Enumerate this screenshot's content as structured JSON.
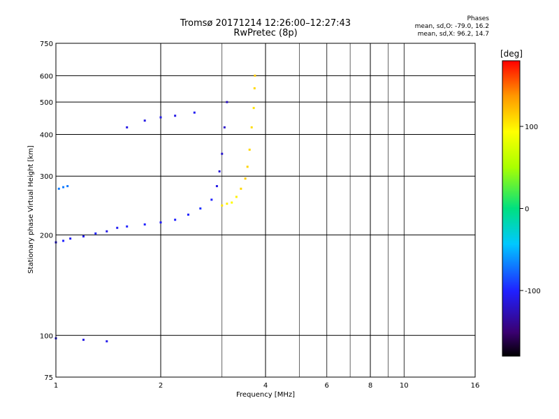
{
  "header": {
    "title_line1": "Tromsø 20171214 12:26:00–12:27:43",
    "title_line2": "RwPretec (8p)",
    "phases_heading": "Phases",
    "phases_o": "mean, sd,O: -79.0, 16.2",
    "phases_x": "mean, sd,X: 96.2, 14.7"
  },
  "colorbar": {
    "unit": "[deg]",
    "ticks": [
      {
        "v": 100,
        "label": "100"
      },
      {
        "v": 0,
        "label": "0"
      },
      {
        "v": -100,
        "label": "-100"
      }
    ],
    "range": [
      -180,
      180
    ]
  },
  "chart_data": {
    "type": "scatter",
    "title": "Tromsø 20171214 12:26:00–12:27:43",
    "subtitle": "RwPretec (8p)",
    "xlabel": "Frequency [MHz]",
    "ylabel": "Stationary phase Virtual Height [km]",
    "x_scale": "log",
    "y_scale": "log",
    "xlim": [
      1,
      16
    ],
    "ylim": [
      75,
      750
    ],
    "x_ticks": [
      {
        "v": 1,
        "label": "1",
        "major": true
      },
      {
        "v": 2,
        "label": "2",
        "major": true
      },
      {
        "v": 4,
        "label": "4",
        "major": true
      },
      {
        "v": 6,
        "label": "6",
        "major": false
      },
      {
        "v": 8,
        "label": "8",
        "major": true
      },
      {
        "v": 10,
        "label": "10",
        "major": false
      },
      {
        "v": 16,
        "label": "16",
        "major": true
      }
    ],
    "y_ticks": [
      {
        "v": 75,
        "label": "75"
      },
      {
        "v": 100,
        "label": "100"
      },
      {
        "v": 200,
        "label": "200"
      },
      {
        "v": 300,
        "label": "300"
      },
      {
        "v": 400,
        "label": "400"
      },
      {
        "v": 500,
        "label": "500"
      },
      {
        "v": 600,
        "label": "600"
      },
      {
        "v": 750,
        "label": "750"
      }
    ],
    "x_minor_grid": [
      3,
      5,
      7,
      9
    ],
    "grid": true,
    "color_scale": {
      "label": "[deg]",
      "range": [
        -180,
        180
      ]
    },
    "series": [
      {
        "name": "O",
        "points": [
          [
            1.0,
            190,
            -110
          ],
          [
            1.05,
            192,
            -100
          ],
          [
            1.1,
            195,
            -105
          ],
          [
            1.2,
            198,
            -108
          ],
          [
            1.3,
            202,
            -100
          ],
          [
            1.4,
            205,
            -110
          ],
          [
            1.5,
            210,
            -105
          ],
          [
            1.6,
            212,
            -100
          ],
          [
            1.8,
            215,
            -100
          ],
          [
            2.0,
            218,
            -105
          ],
          [
            2.2,
            222,
            -100
          ],
          [
            2.4,
            230,
            -100
          ],
          [
            2.6,
            240,
            -95
          ],
          [
            2.8,
            255,
            -100
          ],
          [
            2.9,
            280,
            -110
          ],
          [
            2.95,
            310,
            -115
          ],
          [
            3.0,
            350,
            -118
          ],
          [
            3.05,
            420,
            -120
          ],
          [
            3.1,
            500,
            -122
          ],
          [
            1.02,
            275,
            -70
          ],
          [
            1.05,
            278,
            -70
          ],
          [
            1.08,
            280,
            -70
          ],
          [
            1.6,
            420,
            -110
          ],
          [
            1.8,
            440,
            -110
          ],
          [
            2.0,
            450,
            -108
          ],
          [
            2.2,
            455,
            -110
          ],
          [
            2.5,
            465,
            -105
          ],
          [
            1.0,
            98,
            -110
          ],
          [
            1.2,
            97,
            -110
          ],
          [
            1.4,
            96,
            -108
          ]
        ]
      },
      {
        "name": "X",
        "points": [
          [
            3.0,
            245,
            105
          ],
          [
            3.1,
            248,
            100
          ],
          [
            3.2,
            250,
            95
          ],
          [
            3.3,
            260,
            100
          ],
          [
            3.4,
            275,
            110
          ],
          [
            3.5,
            295,
            115
          ],
          [
            3.55,
            320,
            112
          ],
          [
            3.6,
            360,
            110
          ],
          [
            3.65,
            420,
            108
          ],
          [
            3.7,
            480,
            105
          ],
          [
            3.72,
            550,
            110
          ],
          [
            3.73,
            600,
            115
          ]
        ]
      }
    ]
  }
}
